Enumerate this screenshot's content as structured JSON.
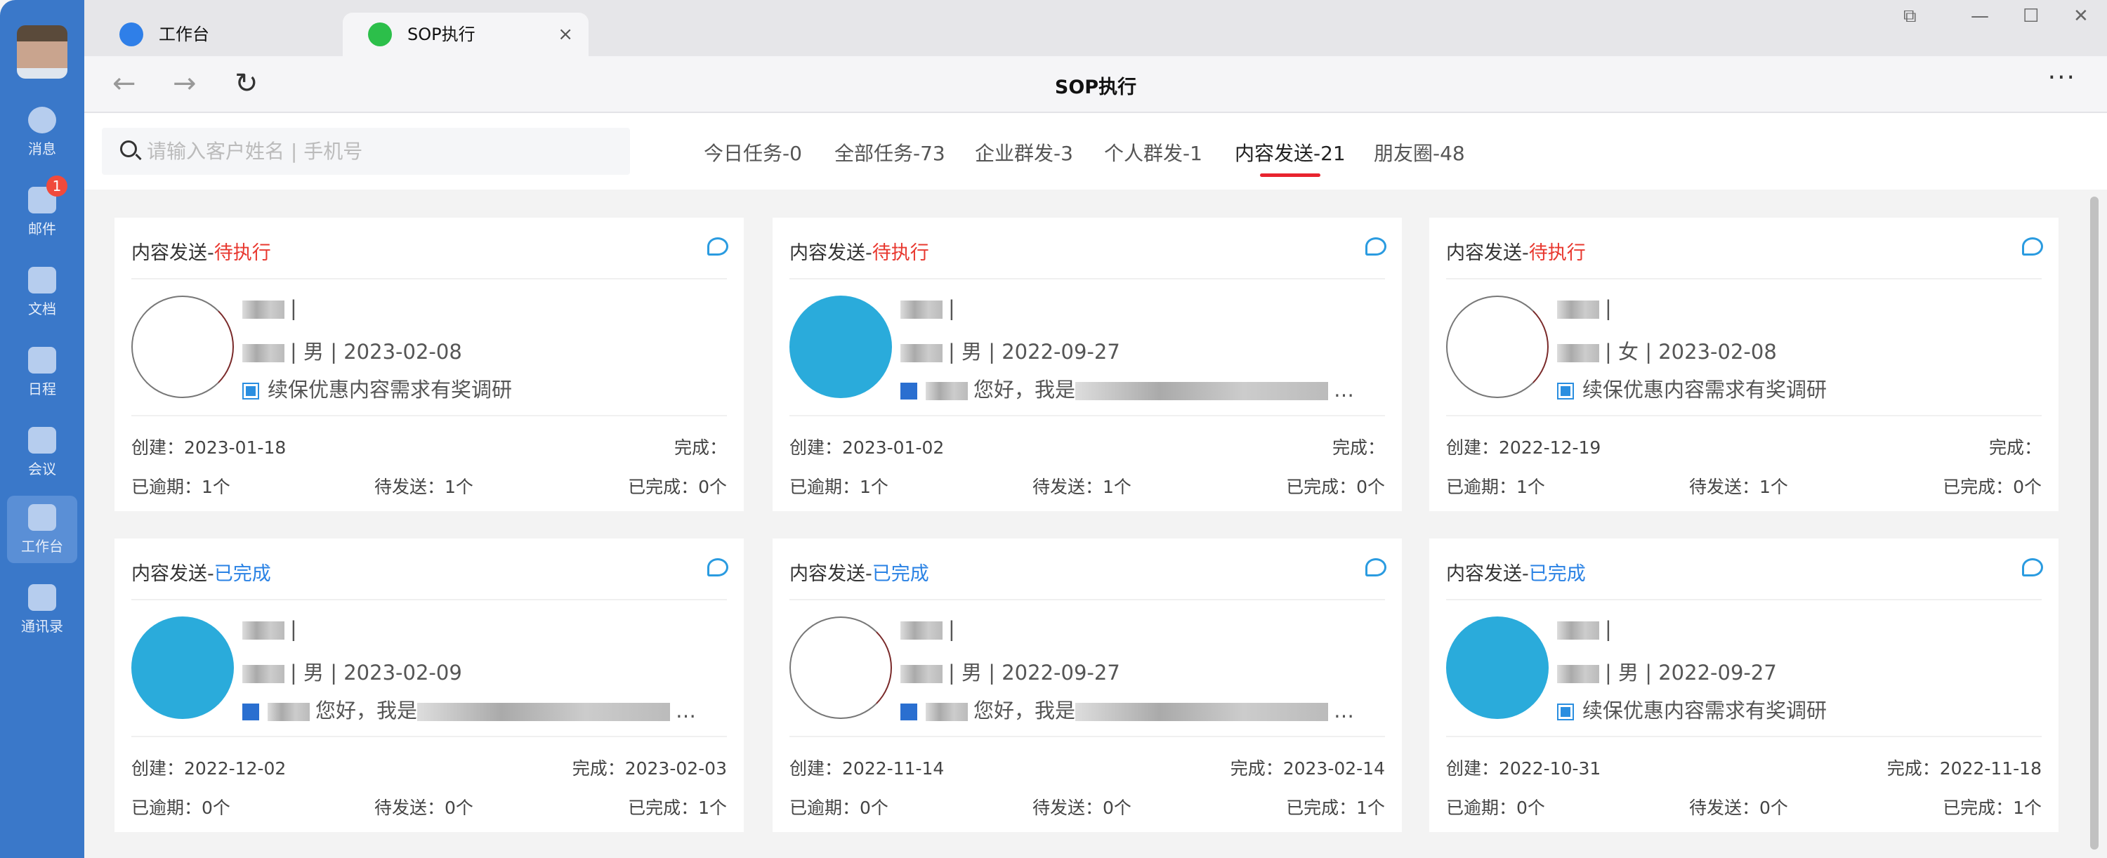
{
  "sidebar": {
    "items": [
      {
        "label": "消息",
        "icon": "chat-bubble-icon"
      },
      {
        "label": "邮件",
        "icon": "mail-icon",
        "badge": "1"
      },
      {
        "label": "文档",
        "icon": "document-icon"
      },
      {
        "label": "日程",
        "icon": "calendar-icon"
      },
      {
        "label": "会议",
        "icon": "meeting-icon"
      },
      {
        "label": "工作台",
        "icon": "workbench-grid-icon",
        "active": true
      },
      {
        "label": "通讯录",
        "icon": "contacts-icon"
      }
    ]
  },
  "tabs": [
    {
      "label": "工作台"
    },
    {
      "label": "SOP执行",
      "active": true,
      "close": "×"
    }
  ],
  "window": {
    "controls": [
      "⧉",
      "—",
      "☐",
      "✕"
    ]
  },
  "toolbar": {
    "back": "←",
    "forward": "→",
    "refresh": "↻",
    "title": "SOP执行",
    "more": "···"
  },
  "search": {
    "placeholder": "请输入客户姓名 | 手机号",
    "value": ""
  },
  "filters": [
    {
      "label": "今日任务-0"
    },
    {
      "label": "全部任务-73"
    },
    {
      "label": "企业群发-3"
    },
    {
      "label": "个人群发-1"
    },
    {
      "label": "内容发送-21",
      "active": true
    },
    {
      "label": "朋友圈-48"
    }
  ],
  "colors": {
    "sidebar": "#3a78c9",
    "pending": "#e8382f",
    "done": "#2a82e4",
    "active_underline": "#e8242f"
  },
  "labels": {
    "type": "内容发送",
    "created": "创建：",
    "completed": "完成：",
    "overdue": "已逾期：",
    "to_send": "待发送：",
    "finished": "已完成："
  },
  "cards": [
    {
      "status": "待执行",
      "state": "pending",
      "avatar": "white",
      "gender": "男",
      "date": "2023-02-08",
      "content_icon": "image",
      "content": "续保优惠内容需求有奖调研",
      "created": "2023-01-18",
      "completed": "",
      "overdue": "1个",
      "to_send": "1个",
      "finished": "0个"
    },
    {
      "status": "待执行",
      "state": "pending",
      "avatar": "blue",
      "gender": "男",
      "date": "2022-09-27",
      "content_icon": "word",
      "content": "您好，我是",
      "created": "2023-01-02",
      "completed": "",
      "overdue": "1个",
      "to_send": "1个",
      "finished": "0个"
    },
    {
      "status": "待执行",
      "state": "pending",
      "avatar": "white",
      "gender": "女",
      "date": "2023-02-08",
      "content_icon": "image",
      "content": "续保优惠内容需求有奖调研",
      "created": "2022-12-19",
      "completed": "",
      "overdue": "1个",
      "to_send": "1个",
      "finished": "0个"
    },
    {
      "status": "已完成",
      "state": "done",
      "avatar": "blue",
      "gender": "男",
      "date": "2023-02-09",
      "content_icon": "word",
      "content": "您好，我是",
      "created": "2022-12-02",
      "completed": "2023-02-03",
      "overdue": "0个",
      "to_send": "0个",
      "finished": "1个"
    },
    {
      "status": "已完成",
      "state": "done",
      "avatar": "white",
      "gender": "男",
      "date": "2022-09-27",
      "content_icon": "word",
      "content": "您好，我是",
      "created": "2022-11-14",
      "completed": "2023-02-14",
      "overdue": "0个",
      "to_send": "0个",
      "finished": "1个"
    },
    {
      "status": "已完成",
      "state": "done",
      "avatar": "blue",
      "gender": "男",
      "date": "2022-09-27",
      "content_icon": "image",
      "content": "续保优惠内容需求有奖调研",
      "created": "2022-10-31",
      "completed": "2022-11-18",
      "overdue": "0个",
      "to_send": "0个",
      "finished": "1个"
    }
  ]
}
